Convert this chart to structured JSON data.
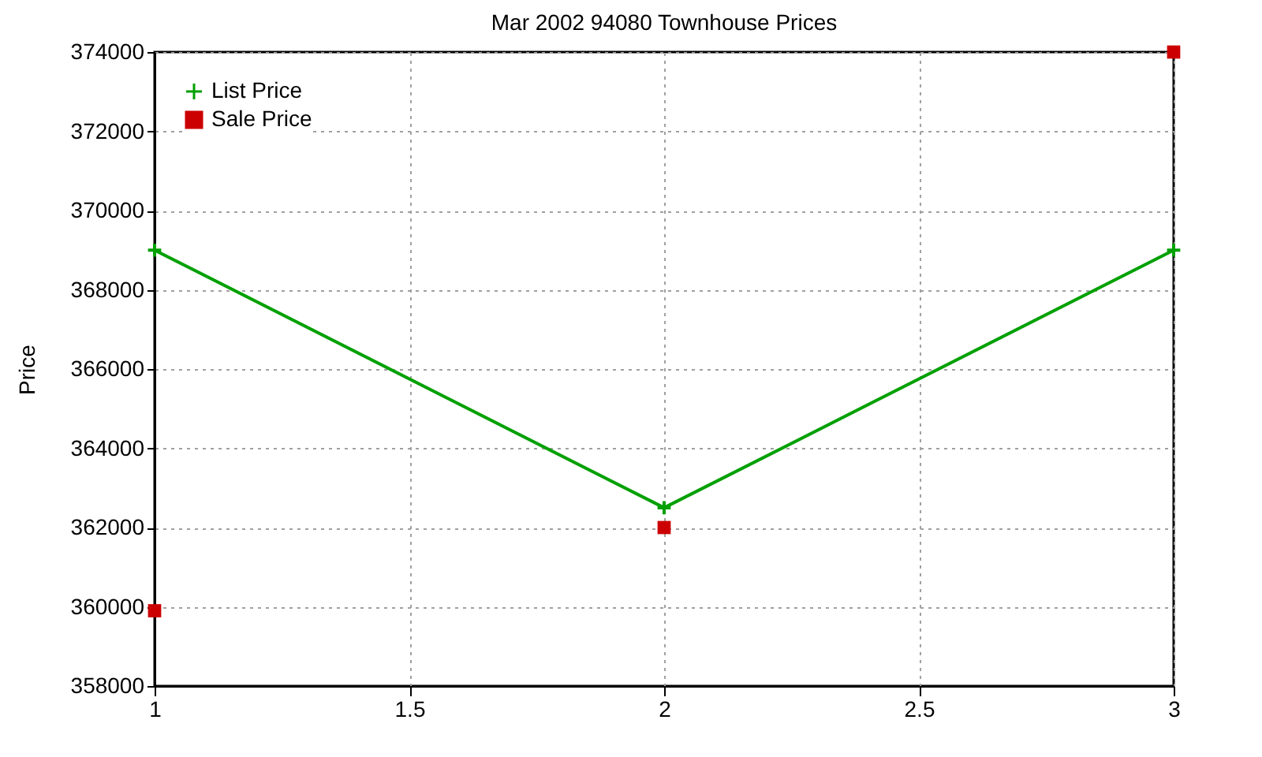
{
  "chart_data": {
    "type": "line",
    "title": "Mar 2002 94080 Townhouse Prices",
    "ylabel": "Price",
    "x": [
      1,
      2,
      3
    ],
    "xlim": [
      1,
      3
    ],
    "xticks": [
      1,
      1.5,
      2,
      2.5,
      3
    ],
    "ylim": [
      358000,
      374000
    ],
    "yticks": [
      358000,
      360000,
      362000,
      364000,
      366000,
      368000,
      370000,
      372000,
      374000
    ],
    "grid": true,
    "legend": "top left",
    "series": [
      {
        "name": "List Price",
        "color": "#00a000",
        "marker": "cross",
        "line_style": "solid",
        "values": [
          369000,
          362500,
          369000
        ]
      },
      {
        "name": "Sale Price",
        "type": "scatter",
        "color": "#cc0000",
        "marker": "square",
        "values": [
          359900,
          362000,
          374000
        ]
      }
    ]
  }
}
